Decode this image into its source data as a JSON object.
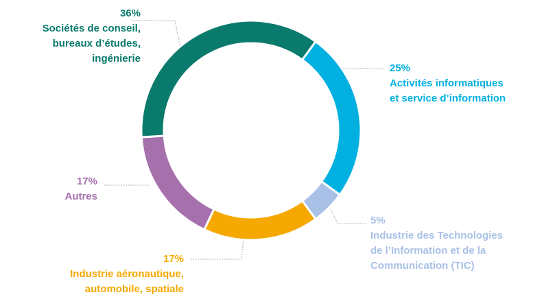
{
  "chart_data": {
    "type": "donut",
    "segments": [
      {
        "value": 25,
        "value_label": "25%",
        "lines": [
          "Activités informatiques",
          "et service d’information"
        ],
        "color": "#00b0e0"
      },
      {
        "value": 5,
        "value_label": "5%",
        "lines": [
          "Industrie des Technologies",
          "de l’Information et de la",
          "Communication (TIC)"
        ],
        "color": "#a9c1e6"
      },
      {
        "value": 17,
        "value_label": "17%",
        "lines": [
          "Industrie aéronautique,",
          "automobile, spatiale"
        ],
        "color": "#f5a800"
      },
      {
        "value": 17,
        "value_label": "17%",
        "lines": [
          "Autres"
        ],
        "color": "#a670ad"
      },
      {
        "value": 36,
        "value_label": "36%",
        "lines": [
          "Sociétés de conseil,",
          "bureaux d’études,",
          "ingénierie"
        ],
        "color": "#0a7a6c"
      }
    ]
  }
}
